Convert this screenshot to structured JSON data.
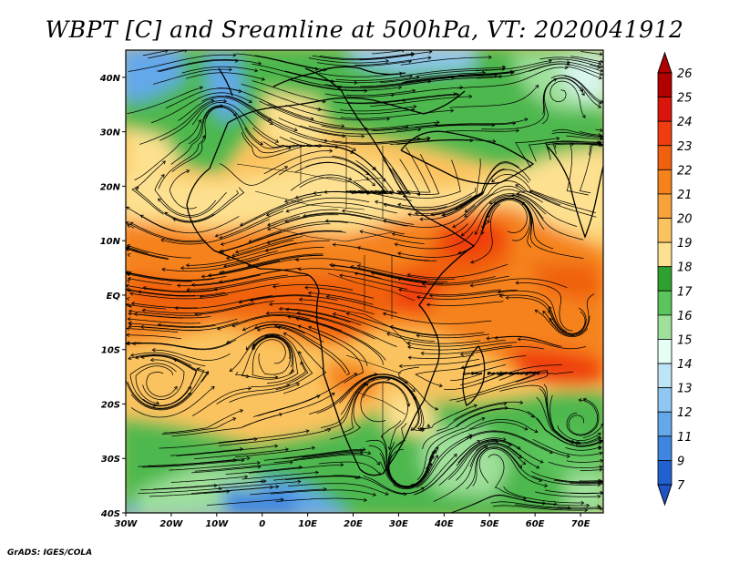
{
  "title": "WBPT [C] and Sreamline at 500hPa, VT: 2020041912",
  "footer": "GrADS: IGES/COLA",
  "map": {
    "projection": "lat-lon",
    "lon_range": [
      -30,
      75
    ],
    "lat_range": [
      -40,
      45
    ],
    "lon_ticks": [
      {
        "value": -30,
        "label": "30W"
      },
      {
        "value": -20,
        "label": "20W"
      },
      {
        "value": -10,
        "label": "10W"
      },
      {
        "value": 0,
        "label": "0"
      },
      {
        "value": 10,
        "label": "10E"
      },
      {
        "value": 20,
        "label": "20E"
      },
      {
        "value": 30,
        "label": "30E"
      },
      {
        "value": 40,
        "label": "40E"
      },
      {
        "value": 50,
        "label": "50E"
      },
      {
        "value": 60,
        "label": "60E"
      },
      {
        "value": 70,
        "label": "70E"
      }
    ],
    "lat_ticks": [
      {
        "value": 40,
        "label": "40N"
      },
      {
        "value": 30,
        "label": "30N"
      },
      {
        "value": 20,
        "label": "20N"
      },
      {
        "value": 10,
        "label": "10N"
      },
      {
        "value": 0,
        "label": "EQ"
      },
      {
        "value": -10,
        "label": "10S"
      },
      {
        "value": -20,
        "label": "20S"
      },
      {
        "value": -30,
        "label": "30S"
      },
      {
        "value": -40,
        "label": "40S"
      }
    ],
    "field": "wet-bulb potential temperature",
    "overlay": "streamlines"
  },
  "colorbar": {
    "levels": [
      "26",
      "25",
      "24",
      "23",
      "22",
      "21",
      "20",
      "19",
      "18",
      "17",
      "16",
      "15",
      "14",
      "13",
      "12",
      "11",
      "9",
      "7"
    ],
    "colors": [
      "#b00000",
      "#d8160c",
      "#f03d10",
      "#f0600f",
      "#f5821b",
      "#f8a33a",
      "#fbc35f",
      "#fde190",
      "#2fa12f",
      "#5cc45c",
      "#9fe09a",
      "#e6fff5",
      "#bde4f7",
      "#8fc7f0",
      "#64a8ea",
      "#3e86e0",
      "#2060d0"
    ],
    "ends": "triangles"
  }
}
